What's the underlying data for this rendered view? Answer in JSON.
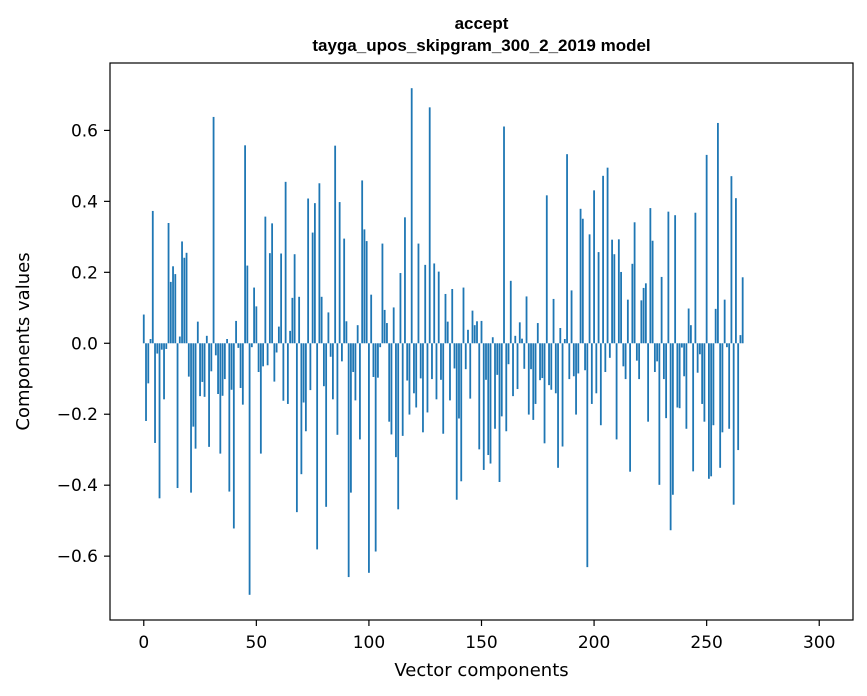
{
  "chart_data": {
    "type": "bar",
    "title_line1": "accept",
    "title_line2": "tayga_upos_skipgram_300_2_2019 model",
    "xlabel": "Vector components",
    "ylabel": "Components values",
    "xlim": [
      -15,
      315
    ],
    "ylim": [
      -0.78,
      0.79
    ],
    "x_ticks": [
      0,
      50,
      100,
      150,
      200,
      250,
      300
    ],
    "x_tick_labels": [
      "0",
      "50",
      "100",
      "150",
      "200",
      "250",
      "300"
    ],
    "y_ticks": [
      -0.6,
      -0.4,
      -0.2,
      0.0,
      0.2,
      0.4,
      0.6
    ],
    "y_tick_labels": [
      "−0.6",
      "−0.4",
      "−0.2",
      "0.0",
      "0.2",
      "0.4",
      "0.6"
    ],
    "bar_color": "#1f77b4",
    "values": [
      0.081,
      -0.219,
      -0.113,
      0.012,
      0.373,
      -0.281,
      -0.029,
      -0.437,
      -0.018,
      -0.158,
      -0.016,
      0.339,
      0.173,
      0.217,
      0.195,
      -0.408,
      0.019,
      0.287,
      0.241,
      0.255,
      -0.094,
      -0.421,
      -0.235,
      -0.297,
      0.061,
      -0.149,
      -0.109,
      -0.151,
      0.021,
      -0.292,
      -0.079,
      0.638,
      -0.034,
      -0.143,
      -0.311,
      -0.148,
      -0.101,
      0.012,
      -0.418,
      -0.131,
      -0.522,
      0.063,
      -0.013,
      -0.126,
      -0.173,
      0.558,
      0.219,
      -0.709,
      -0.011,
      0.157,
      0.104,
      -0.081,
      -0.311,
      -0.065,
      0.357,
      -0.062,
      0.254,
      0.338,
      -0.108,
      -0.026,
      0.047,
      0.253,
      -0.162,
      0.455,
      -0.171,
      0.035,
      0.128,
      0.251,
      -0.476,
      0.131,
      -0.369,
      -0.167,
      -0.248,
      0.408,
      -0.132,
      0.312,
      0.395,
      -0.581,
      0.451,
      0.131,
      -0.121,
      -0.461,
      0.087,
      -0.038,
      -0.158,
      0.557,
      -0.258,
      0.398,
      -0.051,
      0.295,
      0.062,
      -0.659,
      -0.421,
      -0.081,
      -0.161,
      0.051,
      -0.271,
      0.459,
      0.321,
      0.288,
      -0.647,
      0.137,
      -0.095,
      -0.587,
      -0.097,
      -0.011,
      0.281,
      0.094,
      0.057,
      -0.221,
      -0.257,
      0.101,
      -0.321,
      -0.468,
      0.198,
      -0.261,
      0.355,
      -0.105,
      -0.201,
      0.719,
      -0.141,
      -0.181,
      0.281,
      -0.099,
      -0.251,
      0.221,
      -0.195,
      0.665,
      -0.101,
      0.225,
      -0.158,
      0.202,
      -0.103,
      -0.255,
      0.139,
      0.061,
      -0.161,
      0.153,
      -0.071,
      -0.441,
      -0.212,
      -0.389,
      0.157,
      -0.073,
      0.038,
      -0.156,
      0.092,
      0.051,
      0.062,
      -0.299,
      0.063,
      -0.357,
      -0.103,
      -0.315,
      -0.339,
      0.017,
      -0.241,
      -0.089,
      -0.391,
      -0.206,
      0.611,
      -0.248,
      -0.059,
      0.176,
      -0.149,
      0.021,
      -0.129,
      0.059,
      0.013,
      -0.072,
      0.132,
      -0.201,
      -0.073,
      -0.216,
      -0.171,
      0.057,
      -0.104,
      -0.098,
      -0.282,
      0.417,
      -0.118,
      -0.131,
      0.125,
      -0.141,
      -0.351,
      0.043,
      -0.291,
      0.012,
      0.533,
      -0.101,
      0.149,
      -0.093,
      -0.201,
      -0.085,
      0.379,
      0.351,
      -0.076,
      -0.631,
      0.307,
      -0.171,
      0.431,
      -0.141,
      0.257,
      -0.231,
      0.472,
      -0.081,
      0.495,
      -0.041,
      0.292,
      0.251,
      -0.271,
      0.293,
      0.201,
      -0.065,
      -0.101,
      0.123,
      -0.362,
      0.224,
      0.341,
      -0.049,
      -0.101,
      0.121,
      0.156,
      0.169,
      -0.221,
      0.381,
      0.289,
      -0.081,
      -0.051,
      -0.399,
      0.187,
      -0.101,
      -0.211,
      0.371,
      -0.527,
      -0.427,
      0.361,
      -0.181,
      -0.183,
      -0.012,
      -0.093,
      -0.241,
      0.098,
      0.051,
      -0.361,
      0.368,
      -0.083,
      -0.031,
      -0.171,
      -0.221,
      0.531,
      -0.382,
      -0.375,
      -0.231,
      0.097,
      0.621,
      -0.351,
      -0.251,
      0.123,
      -0.011,
      -0.241,
      0.471,
      -0.455,
      0.409,
      -0.301,
      0.023,
      0.186
    ]
  }
}
